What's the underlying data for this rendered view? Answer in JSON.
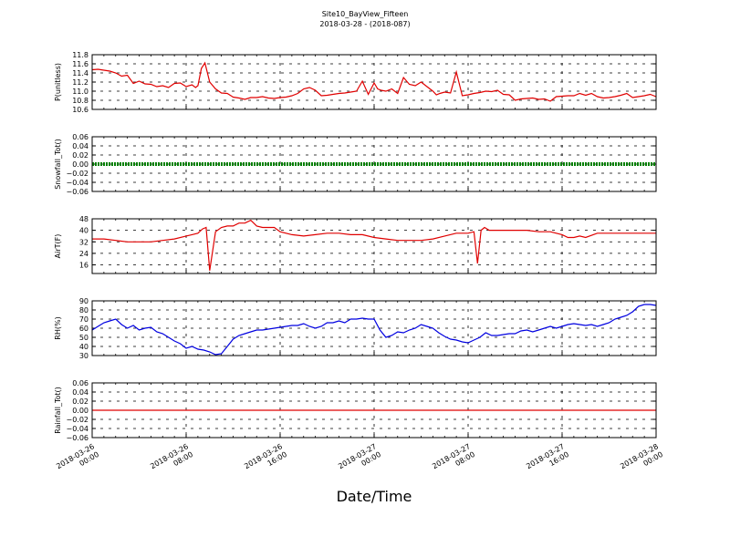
{
  "title": "Site10_BayView_Fifteen",
  "subtitle": "2018-03-28 - (2018-087)",
  "xlabel": "Date/Time",
  "x_ticks": [
    {
      "t": 0,
      "line1": "2018-03-26",
      "line2": "00:00"
    },
    {
      "t": 8,
      "line1": "2018-03-26",
      "line2": "08:00"
    },
    {
      "t": 16,
      "line1": "2018-03-26",
      "line2": "16:00"
    },
    {
      "t": 24,
      "line1": "2018-03-27",
      "line2": "00:00"
    },
    {
      "t": 32,
      "line1": "2018-03-27",
      "line2": "08:00"
    },
    {
      "t": 40,
      "line1": "2018-03-27",
      "line2": "16:00"
    },
    {
      "t": 48,
      "line1": "2018-03-28",
      "line2": "00:00"
    }
  ],
  "chart_data": [
    {
      "type": "line",
      "ylabel": "P(unitless)",
      "ylim": [
        10.6,
        11.8
      ],
      "yticks": [
        "10.6",
        "10.8",
        "11.0",
        "11.2",
        "11.4",
        "11.6",
        "11.8"
      ],
      "color": "#e00000",
      "x_hours": [
        0,
        0.5,
        1,
        1.5,
        2,
        2.5,
        3,
        3.5,
        4,
        4.5,
        5,
        5.5,
        6,
        6.5,
        7,
        7.5,
        8,
        8.5,
        8.8,
        9,
        9.3,
        9.6,
        10,
        10.5,
        11,
        11.5,
        12,
        12.5,
        13,
        13.5,
        14,
        14.5,
        15,
        15.5,
        16,
        16.5,
        17,
        17.5,
        18,
        18.5,
        19,
        19.5,
        20,
        20.5,
        21,
        21.5,
        22,
        22.5,
        23,
        23.5,
        24,
        24.3,
        24.6,
        25,
        25.5,
        26,
        26.5,
        27,
        27.5,
        28,
        28.5,
        29,
        29.3,
        29.6,
        30,
        30.5,
        31,
        31.5,
        32,
        32.5,
        33,
        33.5,
        34,
        34.5,
        35,
        35.5,
        36,
        36.5,
        37,
        37.5,
        38,
        38.5,
        39,
        39.5,
        40,
        40.5,
        41,
        41.5,
        42,
        42.5,
        43,
        43.5,
        44,
        44.5,
        45,
        45.5,
        46,
        46.5,
        47,
        47.5,
        48
      ],
      "values": [
        11.47,
        11.48,
        11.46,
        11.44,
        11.4,
        11.33,
        11.35,
        11.17,
        11.22,
        11.16,
        11.15,
        11.1,
        11.12,
        11.08,
        11.17,
        11.18,
        11.1,
        11.14,
        11.08,
        11.12,
        11.5,
        11.62,
        11.2,
        11.05,
        10.96,
        10.95,
        10.87,
        10.85,
        10.82,
        10.86,
        10.86,
        10.88,
        10.85,
        10.84,
        10.86,
        10.87,
        10.9,
        10.95,
        11.05,
        11.08,
        11.02,
        10.9,
        10.91,
        10.93,
        10.95,
        10.96,
        10.98,
        11.0,
        11.22,
        10.93,
        11.18,
        11.05,
        11.02,
        11.0,
        11.05,
        10.95,
        11.3,
        11.15,
        11.12,
        11.2,
        11.1,
        11.0,
        10.92,
        10.95,
        10.98,
        10.96,
        11.42,
        10.9,
        10.92,
        10.95,
        10.97,
        11.0,
        10.99,
        11.02,
        10.93,
        10.92,
        10.8,
        10.83,
        10.84,
        10.85,
        10.82,
        10.83,
        10.78,
        10.88,
        10.89,
        10.9,
        10.9,
        10.95,
        10.91,
        10.95,
        10.88,
        10.85,
        10.86,
        10.88,
        10.91,
        10.95,
        10.86,
        10.88,
        10.9,
        10.93,
        10.88
      ]
    },
    {
      "type": "line",
      "ylabel": "Snowfall_Tot()",
      "ylim": [
        -0.06,
        0.06
      ],
      "yticks": [
        "−0.06",
        "−0.04",
        "−0.02",
        "0.00",
        "0.02",
        "0.04",
        "0.06"
      ],
      "color": "#008000",
      "x_hours": [
        0,
        48
      ],
      "values": [
        0,
        0
      ]
    },
    {
      "type": "line",
      "ylabel": "AirT(F)",
      "ylim": [
        10,
        48
      ],
      "yticks": [
        "16",
        "24",
        "32",
        "40",
        "48"
      ],
      "color": "#e00000",
      "x_hours": [
        0,
        1,
        2,
        3,
        4,
        5,
        6,
        7,
        8,
        8.5,
        9,
        9.4,
        9.7,
        10,
        10.5,
        11,
        11.5,
        12,
        12.5,
        13,
        13.5,
        14,
        14.5,
        15,
        15.5,
        16,
        17,
        18,
        19,
        20,
        21,
        22,
        23,
        24,
        25,
        26,
        27,
        28,
        29,
        30,
        31,
        32,
        32.5,
        32.8,
        33.1,
        33.4,
        33.8,
        34.2,
        35,
        36,
        37,
        38,
        39,
        40,
        40.5,
        41,
        41.5,
        42,
        43,
        44,
        45,
        46,
        47,
        48
      ],
      "values": [
        34,
        34,
        33,
        32,
        32,
        32,
        33,
        34,
        36,
        37,
        38,
        41,
        42,
        12,
        39,
        42,
        43,
        43,
        45,
        45,
        47,
        43,
        42,
        42,
        42,
        39,
        37,
        36,
        37,
        38,
        38,
        37,
        37,
        35,
        34,
        33,
        33,
        33,
        34,
        36,
        38,
        38,
        39,
        17,
        40,
        42,
        40,
        40,
        40,
        40,
        40,
        39,
        39,
        37,
        35,
        35,
        36,
        35,
        38,
        38,
        38,
        38,
        38,
        38
      ]
    },
    {
      "type": "line",
      "ylabel": "RH(%)",
      "ylim": [
        30,
        90
      ],
      "yticks": [
        "30",
        "40",
        "50",
        "60",
        "70",
        "80",
        "90"
      ],
      "color": "#0000e0",
      "x_hours": [
        0,
        0.5,
        1,
        1.5,
        2,
        2.5,
        3,
        3.5,
        4,
        4.5,
        5,
        5.5,
        6,
        6.5,
        7,
        7.5,
        8,
        8.5,
        9,
        9.5,
        10,
        10.5,
        11,
        11.5,
        12,
        12.5,
        13,
        13.5,
        14,
        14.5,
        15,
        15.5,
        16,
        16.5,
        17,
        17.5,
        18,
        18.5,
        19,
        19.5,
        20,
        20.5,
        21,
        21.5,
        22,
        22.5,
        23,
        23.5,
        24,
        24.5,
        25,
        25.5,
        26,
        26.5,
        27,
        27.5,
        28,
        28.5,
        29,
        29.5,
        30,
        30.5,
        31,
        31.5,
        32,
        32.5,
        33,
        33.5,
        34,
        34.5,
        35,
        35.5,
        36,
        36.5,
        37,
        37.5,
        38,
        38.5,
        39,
        39.5,
        40,
        40.5,
        41,
        41.5,
        42,
        42.5,
        43,
        43.5,
        44,
        44.5,
        45,
        45.5,
        46,
        46.5,
        47,
        47.5,
        48
      ],
      "values": [
        58,
        62,
        66,
        68,
        70,
        64,
        60,
        63,
        58,
        60,
        61,
        56,
        54,
        50,
        46,
        43,
        38,
        40,
        37,
        36,
        34,
        31,
        32,
        40,
        48,
        52,
        54,
        56,
        58,
        58,
        59,
        60,
        61,
        62,
        63,
        63,
        65,
        62,
        60,
        62,
        66,
        66,
        68,
        66,
        70,
        70,
        71,
        70,
        70,
        58,
        50,
        52,
        56,
        55,
        58,
        60,
        64,
        62,
        60,
        55,
        51,
        48,
        47,
        45,
        44,
        47,
        50,
        55,
        52,
        52,
        53,
        54,
        54,
        57,
        58,
        56,
        58,
        60,
        62,
        60,
        62,
        64,
        65,
        64,
        63,
        64,
        62,
        64,
        66,
        70,
        72,
        74,
        78,
        84,
        86,
        86,
        85
      ]
    },
    {
      "type": "line",
      "ylabel": "Rainfall_Tot()",
      "ylim": [
        -0.06,
        0.06
      ],
      "yticks": [
        "−0.06",
        "−0.04",
        "−0.02",
        "0.00",
        "0.02",
        "0.04",
        "0.06"
      ],
      "color": "#e00000",
      "x_hours": [
        0,
        48
      ],
      "values": [
        0,
        0
      ]
    }
  ]
}
